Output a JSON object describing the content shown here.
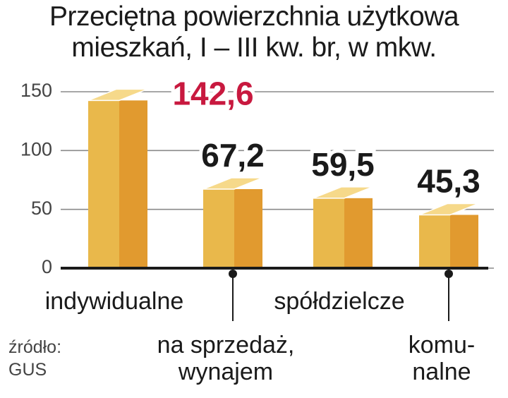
{
  "chart_data": {
    "type": "bar",
    "title": "Przeciętna powierzchnia użytkowa\nmieszkań, I – III kw. br, w mkw.",
    "categories": [
      "indywidualne",
      "na sprzedaż,\nwynajem",
      "spółdzielcze",
      "komu-\nnalne"
    ],
    "values": [
      142.6,
      67.2,
      59.5,
      45.3
    ],
    "value_labels": [
      "142,6",
      "67,2",
      "59,5",
      "45,3"
    ],
    "value_label_colors": [
      "#c8193f",
      "#1a1a1a",
      "#1a1a1a",
      "#1a1a1a"
    ],
    "color": "#e9b84b",
    "ylim": [
      0,
      150
    ],
    "yticks": [
      0,
      50,
      100,
      150
    ],
    "grid": true,
    "source": "źródło:\nGUS"
  }
}
